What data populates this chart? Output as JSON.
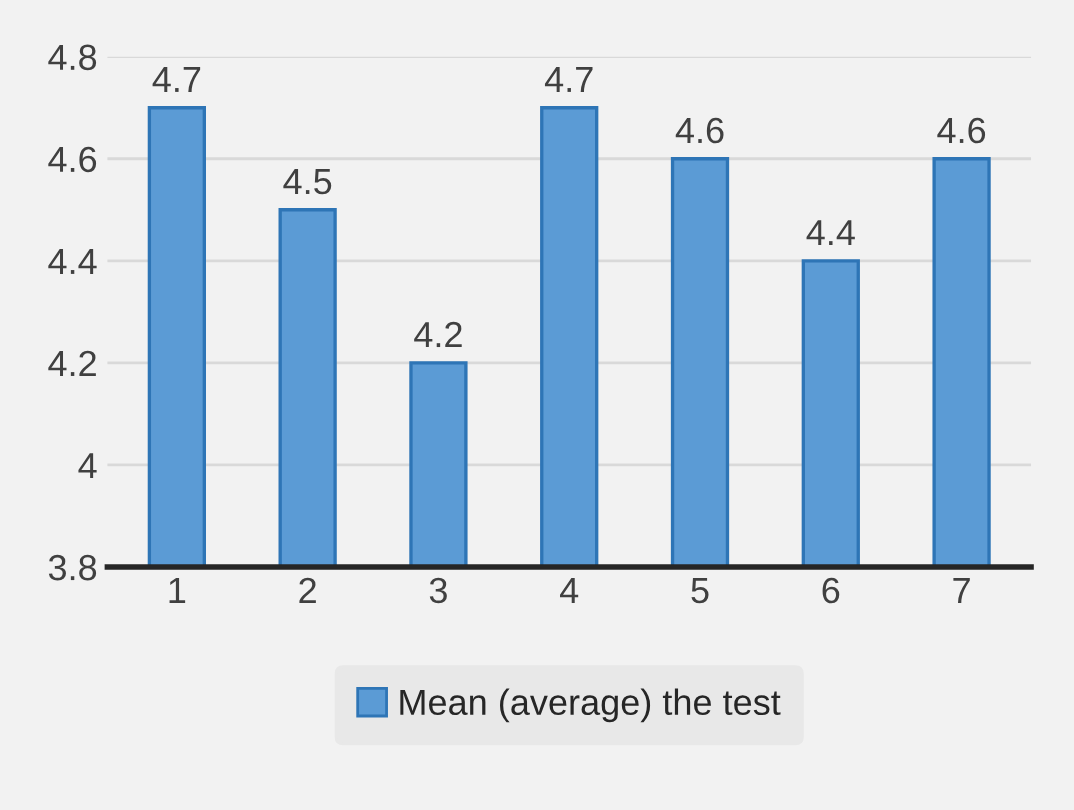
{
  "chart_data": {
    "type": "bar",
    "categories": [
      "1",
      "2",
      "3",
      "4",
      "5",
      "6",
      "7"
    ],
    "series": [
      {
        "name": "Mean (average) the test",
        "color": "#5b9bd5",
        "values": [
          4.7,
          4.5,
          4.2,
          4.7,
          4.6,
          4.4,
          4.6
        ]
      }
    ],
    "ylim": [
      3.8,
      4.8
    ],
    "yticks": [
      3.8,
      4,
      4.2,
      4.4,
      4.6,
      4.8
    ],
    "data_labels": true,
    "grid": "y",
    "legend": "bottom"
  }
}
